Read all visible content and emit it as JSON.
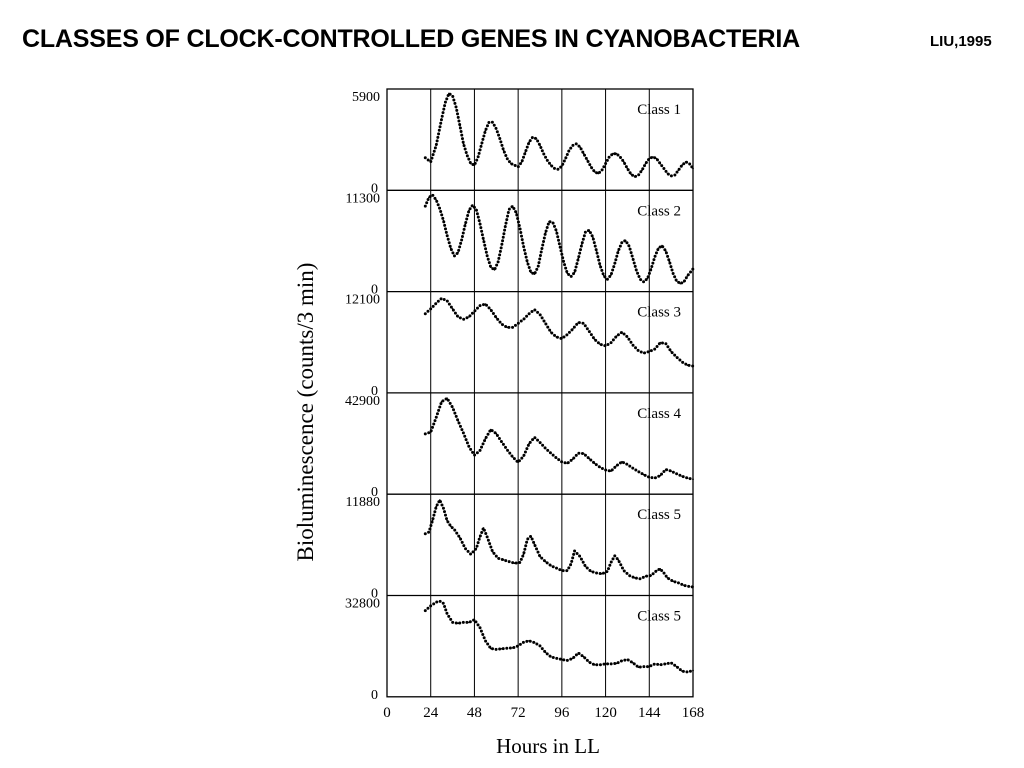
{
  "slide": {
    "title": "CLASSES OF CLOCK-CONTROLLED GENES IN CYANOBACTERIA",
    "citation": "LIU,1995"
  },
  "chart_data": {
    "type": "line",
    "style": "dotted",
    "color": "#000000",
    "xlabel": "Hours in LL",
    "ylabel": "Bioluminescence (counts/3 min)",
    "xlim": [
      0,
      168
    ],
    "xticks": [
      0,
      24,
      48,
      72,
      96,
      120,
      144,
      168
    ],
    "vertical_gridlines_at": [
      24,
      48,
      72,
      96,
      120,
      144
    ],
    "panels": [
      {
        "label": "Class 1",
        "ymin_label": "0",
        "ymax_label": "5900",
        "ylim": [
          0,
          5900
        ],
        "x": [
          21,
          24,
          27,
          30,
          32,
          34,
          36,
          38,
          40,
          42,
          44,
          46,
          48,
          50,
          52,
          54,
          56,
          58,
          60,
          62,
          64,
          66,
          68,
          70,
          72,
          74,
          76,
          78,
          80,
          82,
          84,
          86,
          88,
          90,
          92,
          94,
          96,
          98,
          100,
          102,
          104,
          106,
          108,
          110,
          112,
          114,
          116,
          118,
          120,
          122,
          124,
          126,
          128,
          130,
          132,
          134,
          136,
          138,
          140,
          142,
          144,
          146,
          148,
          150,
          152,
          154,
          156,
          158,
          160,
          162,
          164,
          166,
          168
        ],
        "y": [
          1850,
          1600,
          2600,
          4200,
          5200,
          5750,
          5600,
          4900,
          3800,
          2700,
          2000,
          1500,
          1400,
          1900,
          2700,
          3500,
          4000,
          4000,
          3600,
          3000,
          2300,
          1800,
          1500,
          1400,
          1300,
          1600,
          2200,
          2800,
          3100,
          3000,
          2600,
          2100,
          1700,
          1400,
          1200,
          1150,
          1350,
          1800,
          2300,
          2600,
          2700,
          2500,
          2100,
          1700,
          1300,
          1000,
          900,
          1100,
          1500,
          1900,
          2100,
          2100,
          1900,
          1600,
          1200,
          850,
          700,
          800,
          1100,
          1500,
          1800,
          1900,
          1800,
          1500,
          1200,
          900,
          750,
          800,
          1100,
          1400,
          1600,
          1500,
          1200
        ]
      },
      {
        "label": "Class 2",
        "ymin_label": "0",
        "ymax_label": "11300",
        "ylim": [
          0,
          11300
        ],
        "x": [
          21,
          23,
          25,
          27,
          29,
          31,
          33,
          35,
          37,
          39,
          41,
          43,
          45,
          47,
          49,
          51,
          53,
          55,
          57,
          59,
          61,
          63,
          65,
          67,
          69,
          71,
          73,
          75,
          77,
          79,
          81,
          83,
          85,
          87,
          89,
          91,
          93,
          95,
          97,
          99,
          101,
          103,
          105,
          107,
          109,
          111,
          113,
          115,
          117,
          119,
          121,
          123,
          125,
          127,
          129,
          131,
          133,
          135,
          137,
          139,
          141,
          143,
          145,
          147,
          149,
          151,
          153,
          155,
          157,
          159,
          161,
          163,
          165,
          168
        ],
        "y": [
          9700,
          10700,
          11000,
          10400,
          9400,
          8000,
          6300,
          4800,
          3900,
          4300,
          5800,
          7600,
          9200,
          9800,
          9300,
          7700,
          5800,
          3900,
          2600,
          2300,
          3200,
          5200,
          7400,
          9300,
          9700,
          8900,
          7100,
          5000,
          3200,
          2000,
          1800,
          2700,
          4700,
          6600,
          7900,
          7800,
          6800,
          5000,
          3200,
          1900,
          1500,
          2000,
          3600,
          5300,
          6700,
          6900,
          6100,
          4500,
          2800,
          1600,
          1200,
          1700,
          3000,
          4500,
          5500,
          5700,
          5000,
          3600,
          2200,
          1200,
          900,
          1300,
          2400,
          3800,
          4800,
          5100,
          4500,
          3300,
          1900,
          1000,
          700,
          900,
          1600,
          2400
        ]
      },
      {
        "label": "Class 3",
        "ymin_label": "0",
        "ymax_label": "12100",
        "ylim": [
          0,
          12100
        ],
        "x": [
          21,
          24,
          27,
          30,
          33,
          36,
          39,
          42,
          45,
          48,
          51,
          54,
          57,
          60,
          63,
          66,
          69,
          72,
          75,
          78,
          81,
          84,
          87,
          90,
          93,
          96,
          99,
          102,
          105,
          108,
          111,
          114,
          117,
          120,
          123,
          126,
          129,
          132,
          135,
          138,
          141,
          144,
          147,
          150,
          153,
          156,
          159,
          162,
          165,
          168
        ],
        "y": [
          9600,
          10200,
          10900,
          11500,
          11200,
          10200,
          9200,
          8900,
          9200,
          9900,
          10600,
          10800,
          10100,
          9100,
          8300,
          7900,
          7900,
          8400,
          8900,
          9600,
          10100,
          9500,
          8400,
          7300,
          6700,
          6500,
          7000,
          7700,
          8500,
          8400,
          7400,
          6400,
          5800,
          5600,
          6000,
          6800,
          7300,
          6700,
          5700,
          5000,
          4700,
          4900,
          5200,
          6000,
          5900,
          4900,
          4200,
          3600,
          3200,
          3100
        ]
      },
      {
        "label": "Class 4",
        "ymin_label": "0",
        "ymax_label": "42900",
        "ylim": [
          0,
          42900
        ],
        "x": [
          21,
          24,
          27,
          30,
          33,
          36,
          39,
          42,
          45,
          48,
          51,
          54,
          57,
          60,
          63,
          66,
          69,
          72,
          75,
          78,
          81,
          84,
          87,
          90,
          93,
          96,
          99,
          102,
          105,
          108,
          111,
          114,
          117,
          120,
          123,
          126,
          129,
          132,
          135,
          138,
          141,
          144,
          147,
          150,
          153,
          156,
          159,
          162,
          165,
          168
        ],
        "y": [
          25700,
          26500,
          33000,
          39900,
          41400,
          37400,
          31500,
          26000,
          20000,
          16300,
          18300,
          23600,
          27600,
          25800,
          22100,
          18700,
          15500,
          13200,
          15900,
          21400,
          24200,
          21900,
          19300,
          17200,
          15100,
          13300,
          12700,
          14600,
          17200,
          17000,
          14800,
          12700,
          11000,
          9800,
          9300,
          11700,
          13400,
          12200,
          10600,
          9100,
          7700,
          6600,
          6200,
          7300,
          10000,
          9300,
          8100,
          7000,
          6200,
          5700
        ]
      },
      {
        "label": "Class 5",
        "ymin_label": "0",
        "ymax_label": "11880",
        "ylim": [
          0,
          11880
        ],
        "x": [
          21,
          23,
          25,
          27,
          29,
          31,
          33,
          35,
          37,
          40,
          43,
          46,
          49,
          51,
          53,
          55,
          58,
          61,
          64,
          67,
          70,
          73,
          75,
          77,
          79,
          81,
          84,
          87,
          90,
          93,
          96,
          99,
          101,
          103,
          106,
          109,
          112,
          115,
          118,
          121,
          123,
          125,
          127,
          130,
          133,
          136,
          139,
          142,
          145,
          148,
          150,
          152,
          154,
          157,
          160,
          163,
          166,
          168
        ],
        "y": [
          7300,
          7500,
          8900,
          10600,
          11400,
          10400,
          8900,
          8200,
          7800,
          6800,
          5500,
          4800,
          5500,
          6900,
          8000,
          6900,
          5100,
          4300,
          4100,
          3900,
          3700,
          3800,
          4800,
          6600,
          7000,
          6000,
          4500,
          3900,
          3400,
          3100,
          2800,
          2800,
          3600,
          5200,
          4500,
          3300,
          2700,
          2500,
          2400,
          2700,
          3800,
          4600,
          4100,
          2800,
          2200,
          1900,
          1800,
          2100,
          2200,
          2800,
          3000,
          2500,
          1900,
          1500,
          1300,
          1000,
          850,
          800
        ]
      },
      {
        "label": "Class 5",
        "ymin_label": "0",
        "ymax_label": "32800",
        "ylim": [
          0,
          32800
        ],
        "x": [
          21,
          24,
          27,
          29,
          31,
          33,
          36,
          39,
          42,
          45,
          48,
          51,
          54,
          57,
          60,
          63,
          66,
          69,
          72,
          75,
          78,
          81,
          84,
          87,
          90,
          93,
          96,
          99,
          102,
          105,
          108,
          111,
          114,
          117,
          120,
          123,
          126,
          129,
          132,
          135,
          138,
          141,
          144,
          147,
          150,
          153,
          156,
          159,
          162,
          165,
          168
        ],
        "y": [
          28400,
          30000,
          31200,
          31600,
          30800,
          27300,
          24400,
          24100,
          24400,
          24400,
          25300,
          22700,
          18200,
          15600,
          15300,
          15500,
          15700,
          15800,
          16500,
          17700,
          18200,
          17600,
          16500,
          14300,
          12800,
          12300,
          11900,
          11600,
          12300,
          14100,
          12800,
          11000,
          10100,
          10100,
          10400,
          10400,
          10600,
          11500,
          11900,
          10800,
          9300,
          9500,
          9500,
          10400,
          10100,
          10400,
          10800,
          9500,
          8000,
          7700,
          8200
        ]
      }
    ]
  }
}
